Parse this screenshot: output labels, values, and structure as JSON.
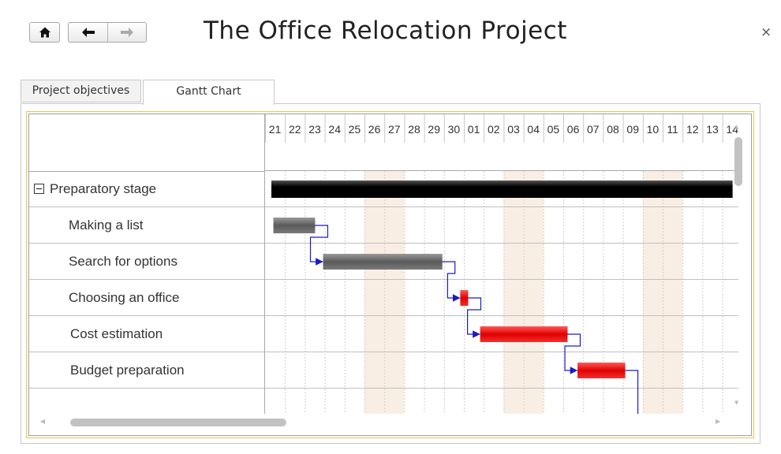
{
  "window": {
    "title": "The Office Relocation Project",
    "close_glyph": "×"
  },
  "toolbar": {
    "home_icon": "home-icon",
    "back_icon": "arrow-left-icon",
    "forward_icon": "arrow-right-icon"
  },
  "tabs": [
    {
      "label": "Project objectives",
      "active": false
    },
    {
      "label": "Gantt Chart",
      "active": true
    }
  ],
  "gantt": {
    "day_labels": [
      "21",
      "22",
      "23",
      "24",
      "25",
      "26",
      "27",
      "28",
      "29",
      "30",
      "01",
      "02",
      "03",
      "04",
      "05",
      "06",
      "07",
      "08",
      "09",
      "10",
      "11",
      "12",
      "13",
      "14"
    ],
    "weekend_days": [
      5,
      6,
      12,
      13,
      19,
      20
    ],
    "tasks": [
      {
        "label": "Preparatory stage",
        "type": "summary",
        "start": 0,
        "duration": 23.2,
        "color": "#111111"
      },
      {
        "label": "Making a list",
        "type": "task",
        "start": 0.1,
        "duration": 2.1,
        "color": "#6e6e6e"
      },
      {
        "label": "Search for options",
        "type": "task",
        "start": 2.6,
        "duration": 6.0,
        "color": "#6e6e6e"
      },
      {
        "label": "Choosing an office",
        "type": "task",
        "start": 9.5,
        "duration": 0.4,
        "color": "#e01010"
      },
      {
        "label": "Cost estimation",
        "type": "task",
        "start": 10.5,
        "duration": 4.4,
        "color": "#e01010"
      },
      {
        "label": "Budget preparation",
        "type": "task",
        "start": 15.4,
        "duration": 2.4,
        "color": "#e01010"
      }
    ],
    "link_color": "#1a1acc",
    "weekend_color": "#f9eee4"
  }
}
